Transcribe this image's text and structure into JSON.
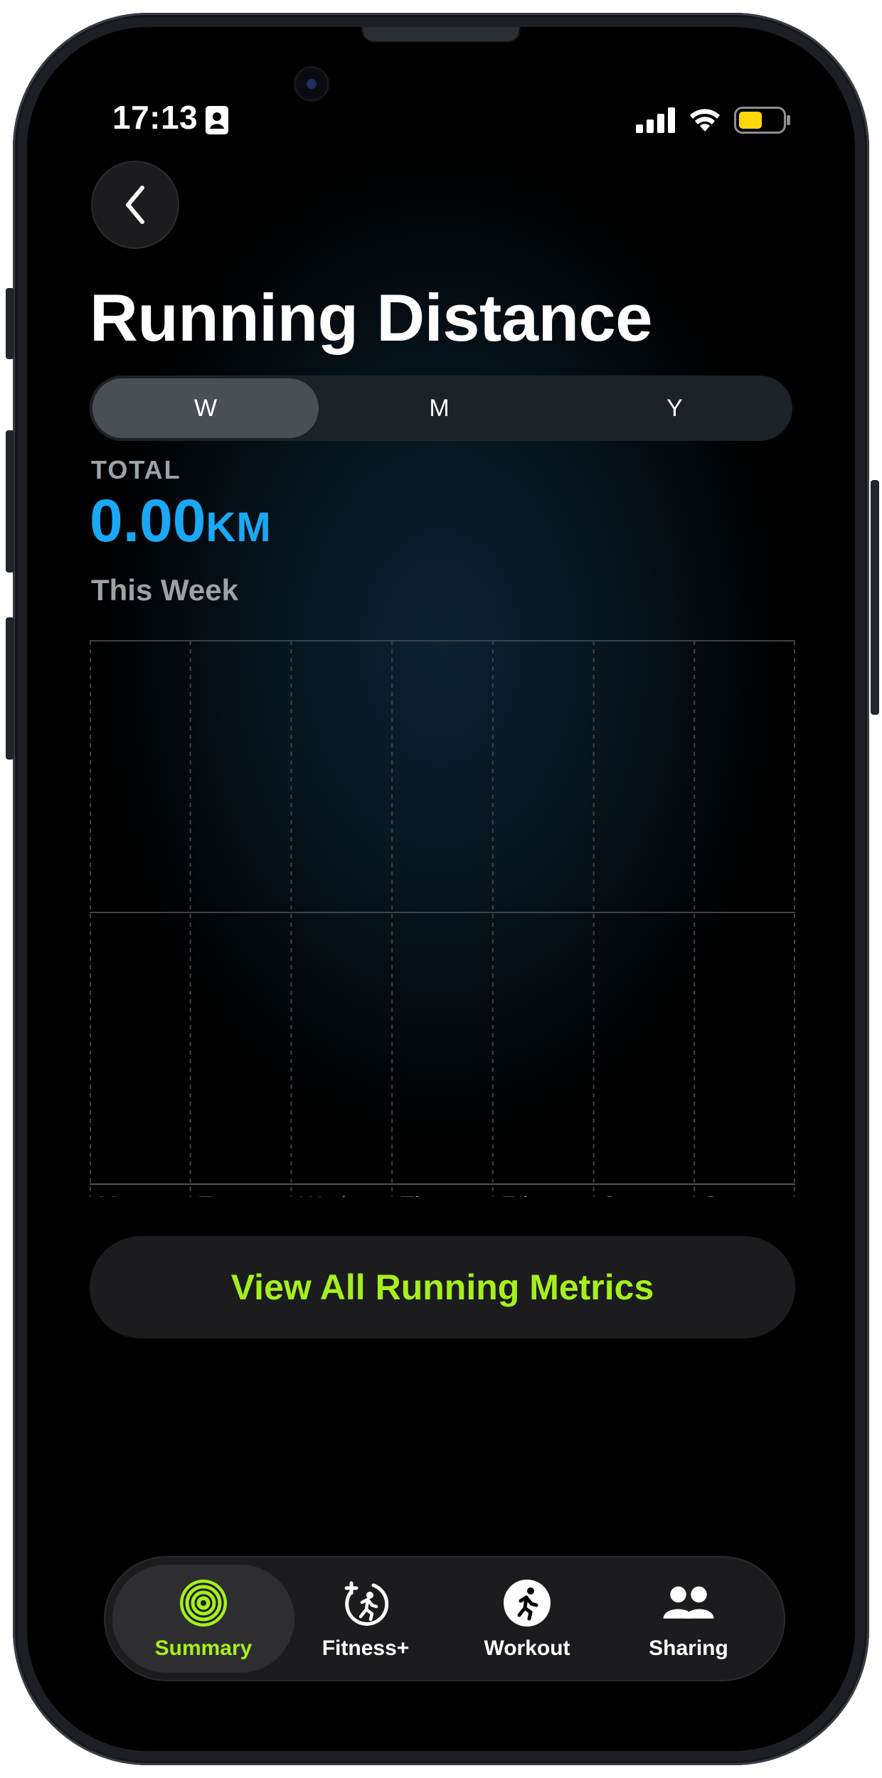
{
  "status_bar": {
    "time": "17:13"
  },
  "page": {
    "title": "Running Distance"
  },
  "segments": [
    "W",
    "M",
    "Y"
  ],
  "summary": {
    "label": "TOTAL",
    "value": "0.00",
    "unit": "KM",
    "period": "This Week"
  },
  "chart_data": {
    "type": "bar",
    "categories": [
      "Mon",
      "Tue",
      "Wed",
      "Thu",
      "Fri",
      "Sat",
      "Sun"
    ],
    "values": [
      0,
      0,
      0,
      0,
      0,
      0,
      0
    ],
    "xlabel": "",
    "ylabel": "",
    "grid": true
  },
  "metrics_button": {
    "label": "View All Running Metrics"
  },
  "tab_bar": {
    "tabs": [
      {
        "label": "Summary",
        "icon": "activity-rings-icon",
        "active": true
      },
      {
        "label": "Fitness+",
        "icon": "fitness-plus-icon",
        "active": false
      },
      {
        "label": "Workout",
        "icon": "workout-runner-icon",
        "active": false
      },
      {
        "label": "Sharing",
        "icon": "sharing-people-icon",
        "active": false
      }
    ]
  },
  "colors": {
    "accent_green": "#a6ef1e",
    "accent_blue": "#1aa8f4",
    "secondary_text": "#9aa3a8"
  }
}
